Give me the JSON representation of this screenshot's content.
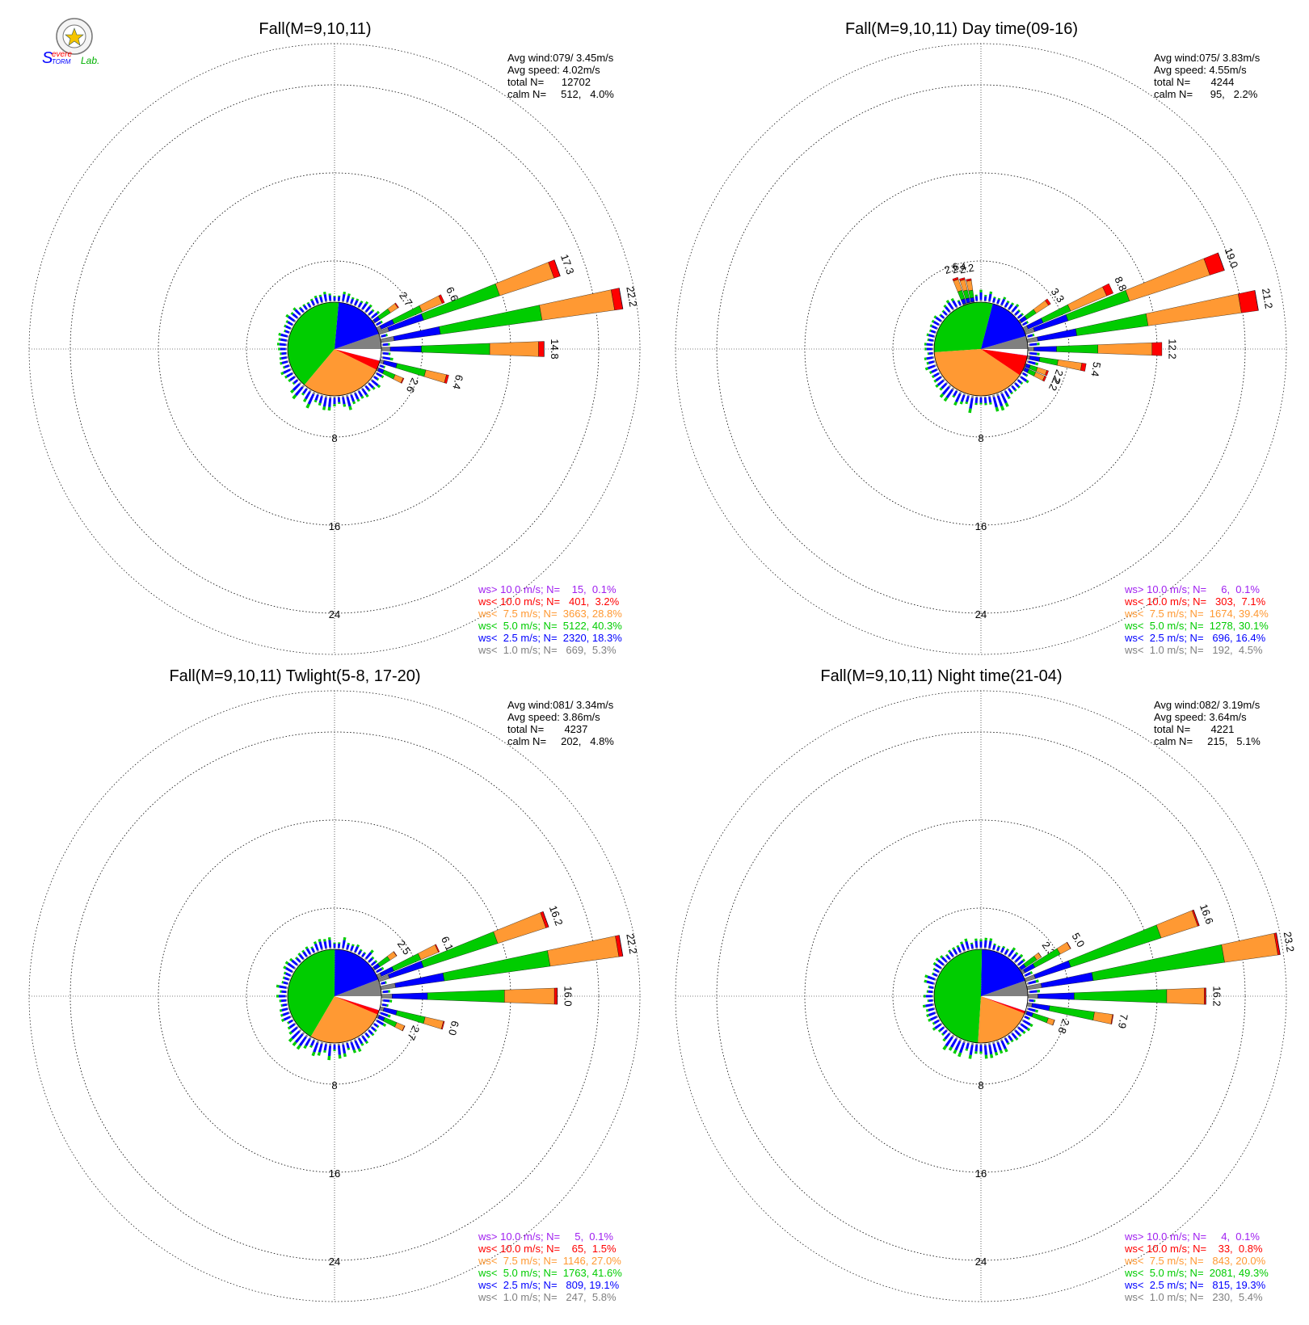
{
  "logo": {
    "line1": "Severe",
    "line2": "Storm",
    "line3": "Lab.",
    "colors": {
      "s": "#0000ff",
      "evere": "#ff0000",
      "torm": "#0000ff",
      "lab": "#00b000"
    }
  },
  "colors": {
    "gt10": "#a020f0",
    "lt10": "#ff0000",
    "lt75": "#ff9933",
    "lt5": "#00cc00",
    "lt25": "#0000ff",
    "lt1": "#808080",
    "calm": "#ffffff",
    "grid": "#000000"
  },
  "ring_labels": [
    "8",
    "16",
    "24"
  ],
  "chart_data": [
    {
      "type": "windrose",
      "title": "Fall(M=9,10,11)",
      "stats": {
        "avg_wind": "Avg wind:079/ 3.45m/s",
        "avg_speed": "Avg speed: 4.02m/s",
        "total": "total N=      12702",
        "calm": "calm N=     512,   4.0%"
      },
      "rmax": 24,
      "long_bars": [
        {
          "dir": 55,
          "total": 2.7,
          "label": "2.7"
        },
        {
          "dir": 65,
          "total": 6.6,
          "label": "6.6"
        },
        {
          "dir": 70,
          "total": 17.3,
          "label": "17.3"
        },
        {
          "dir": 80,
          "total": 22.2,
          "label": "22.2"
        },
        {
          "dir": 90,
          "total": 14.8,
          "label": "14.8"
        },
        {
          "dir": 105,
          "total": 6.4,
          "label": "6.4"
        },
        {
          "dir": 115,
          "total": 2.6,
          "label": "2.6"
        }
      ],
      "speed_pie": [
        5.3,
        18.3,
        40.3,
        28.8,
        3.2,
        0.1
      ],
      "legend": [
        {
          "text": "ws> 10.0 m/s; N=    15,  0.1%",
          "color_key": "gt10"
        },
        {
          "text": "ws< 10.0 m/s; N=   401,  3.2%",
          "color_key": "lt10"
        },
        {
          "text": "ws<  7.5 m/s; N=  3663, 28.8%",
          "color_key": "lt75"
        },
        {
          "text": "ws<  5.0 m/s; N=  5122, 40.3%",
          "color_key": "lt5"
        },
        {
          "text": "ws<  2.5 m/s; N=  2320, 18.3%",
          "color_key": "lt25"
        },
        {
          "text": "ws<  1.0 m/s; N=   669,  5.3%",
          "color_key": "lt1"
        }
      ]
    },
    {
      "type": "windrose",
      "title": "Fall(M=9,10,11) Day time(09-16)",
      "stats": {
        "avg_wind": "Avg wind:075/ 3.83m/s",
        "avg_speed": "Avg speed: 4.55m/s",
        "total": "total N=       4244",
        "calm": "calm N=      95,   2.2%"
      },
      "rmax": 24,
      "long_bars": [
        {
          "dir": 340,
          "total": 2.6,
          "label": "2.6"
        },
        {
          "dir": 345,
          "total": 2.4,
          "label": "2.4"
        },
        {
          "dir": 350,
          "total": 2.2,
          "label": "2.2"
        },
        {
          "dir": 55,
          "total": 3.3,
          "label": "3.3"
        },
        {
          "dir": 65,
          "total": 8.8,
          "label": "8.8"
        },
        {
          "dir": 70,
          "total": 19.0,
          "label": "19.0"
        },
        {
          "dir": 80,
          "total": 21.2,
          "label": "21.2"
        },
        {
          "dir": 90,
          "total": 12.2,
          "label": "12.2"
        },
        {
          "dir": 100,
          "total": 5.4,
          "label": "5.4"
        },
        {
          "dir": 110,
          "total": 2.2,
          "label": "2.2"
        },
        {
          "dir": 115,
          "total": 2.2,
          "label": "2.2"
        }
      ],
      "speed_pie": [
        4.5,
        16.4,
        30.1,
        39.4,
        7.1,
        0.1
      ],
      "legend": [
        {
          "text": "ws> 10.0 m/s; N=     6,  0.1%",
          "color_key": "gt10"
        },
        {
          "text": "ws< 10.0 m/s; N=   303,  7.1%",
          "color_key": "lt10"
        },
        {
          "text": "ws<  7.5 m/s; N=  1674, 39.4%",
          "color_key": "lt75"
        },
        {
          "text": "ws<  5.0 m/s; N=  1278, 30.1%",
          "color_key": "lt5"
        },
        {
          "text": "ws<  2.5 m/s; N=   696, 16.4%",
          "color_key": "lt25"
        },
        {
          "text": "ws<  1.0 m/s; N=   192,  4.5%",
          "color_key": "lt1"
        }
      ]
    },
    {
      "type": "windrose",
      "title": "Fall(M=9,10,11) Twlight(5-8, 17-20)",
      "stats": {
        "avg_wind": "Avg wind:081/ 3.34m/s",
        "avg_speed": "Avg speed: 3.86m/s",
        "total": "total N=       4237",
        "calm": "calm N=     202,   4.8%"
      },
      "rmax": 24,
      "long_bars": [
        {
          "dir": 55,
          "total": 2.5,
          "label": "2.5"
        },
        {
          "dir": 65,
          "total": 6.1,
          "label": "6.1"
        },
        {
          "dir": 70,
          "total": 16.2,
          "label": "16.2"
        },
        {
          "dir": 80,
          "total": 22.2,
          "label": "22.2"
        },
        {
          "dir": 90,
          "total": 16.0,
          "label": "16.0"
        },
        {
          "dir": 105,
          "total": 6.0,
          "label": "6.0"
        },
        {
          "dir": 115,
          "total": 2.7,
          "label": "2.7"
        }
      ],
      "speed_pie": [
        5.8,
        19.1,
        41.6,
        27.0,
        1.5,
        0.1
      ],
      "legend": [
        {
          "text": "ws> 10.0 m/s; N=     5,  0.1%",
          "color_key": "gt10"
        },
        {
          "text": "ws< 10.0 m/s; N=    65,  1.5%",
          "color_key": "lt10"
        },
        {
          "text": "ws<  7.5 m/s; N=  1146, 27.0%",
          "color_key": "lt75"
        },
        {
          "text": "ws<  5.0 m/s; N=  1763, 41.6%",
          "color_key": "lt5"
        },
        {
          "text": "ws<  2.5 m/s; N=   809, 19.1%",
          "color_key": "lt25"
        },
        {
          "text": "ws<  1.0 m/s; N=   247,  5.8%",
          "color_key": "lt1"
        }
      ]
    },
    {
      "type": "windrose",
      "title": "Fall(M=9,10,11) Night time(21-04)",
      "stats": {
        "avg_wind": "Avg wind:082/ 3.19m/s",
        "avg_speed": "Avg speed: 3.64m/s",
        "total": "total N=       4221",
        "calm": "calm N=     215,   5.1%"
      },
      "rmax": 24,
      "long_bars": [
        {
          "dir": 55,
          "total": 2.3,
          "label": "2.3"
        },
        {
          "dir": 60,
          "total": 5.0,
          "label": "5.0"
        },
        {
          "dir": 70,
          "total": 16.6,
          "label": "16.6"
        },
        {
          "dir": 80,
          "total": 23.2,
          "label": "23.2"
        },
        {
          "dir": 90,
          "total": 16.2,
          "label": "16.2"
        },
        {
          "dir": 100,
          "total": 7.9,
          "label": "7.9"
        },
        {
          "dir": 110,
          "total": 2.8,
          "label": "2.8"
        }
      ],
      "speed_pie": [
        5.4,
        19.3,
        49.3,
        20.0,
        0.8,
        0.1
      ],
      "legend": [
        {
          "text": "ws> 10.0 m/s; N=     4,  0.1%",
          "color_key": "gt10"
        },
        {
          "text": "ws< 10.0 m/s; N=    33,  0.8%",
          "color_key": "lt10"
        },
        {
          "text": "ws<  7.5 m/s; N=   843, 20.0%",
          "color_key": "lt75"
        },
        {
          "text": "ws<  5.0 m/s; N=  2081, 49.3%",
          "color_key": "lt5"
        },
        {
          "text": "ws<  2.5 m/s; N=   815, 19.3%",
          "color_key": "lt25"
        },
        {
          "text": "ws<  1.0 m/s; N=   230,  5.4%",
          "color_key": "lt1"
        }
      ]
    }
  ]
}
